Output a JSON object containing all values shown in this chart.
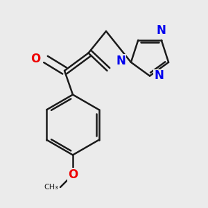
{
  "bg_color": "#ebebeb",
  "bond_color": "#1a1a1a",
  "bond_width": 1.8,
  "N_color": "#0000ee",
  "O_color": "#ee0000",
  "font_size_N": 12,
  "font_size_O": 12,
  "fig_width": 3.0,
  "fig_height": 3.0,
  "dpi": 100,
  "xlim": [
    0.0,
    1.0
  ],
  "ylim": [
    0.0,
    1.0
  ]
}
